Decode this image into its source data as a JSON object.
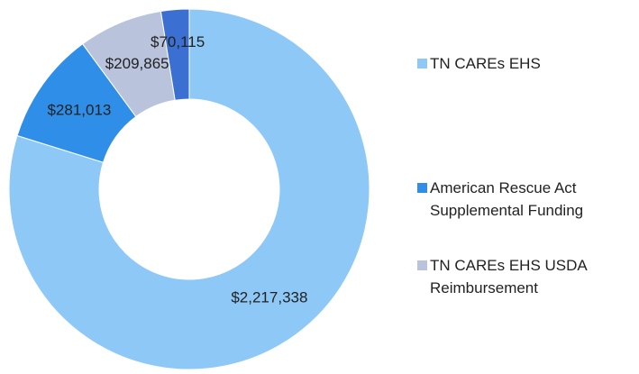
{
  "chart_data": {
    "type": "donut",
    "categories": [
      "TN CAREs EHS",
      "American Rescue Act Supplemental Funding",
      "TN CAREs EHS USDA Reimbursement",
      null
    ],
    "values": [
      2217338,
      281013,
      209865,
      70115
    ],
    "value_labels": [
      "$2,217,338",
      "$281,013",
      "$209,865",
      "$70,115"
    ],
    "colors": [
      "#8ec8f6",
      "#2f8ee8",
      "#b9c3dc",
      "#3b6fd1"
    ],
    "legend": "right"
  }
}
